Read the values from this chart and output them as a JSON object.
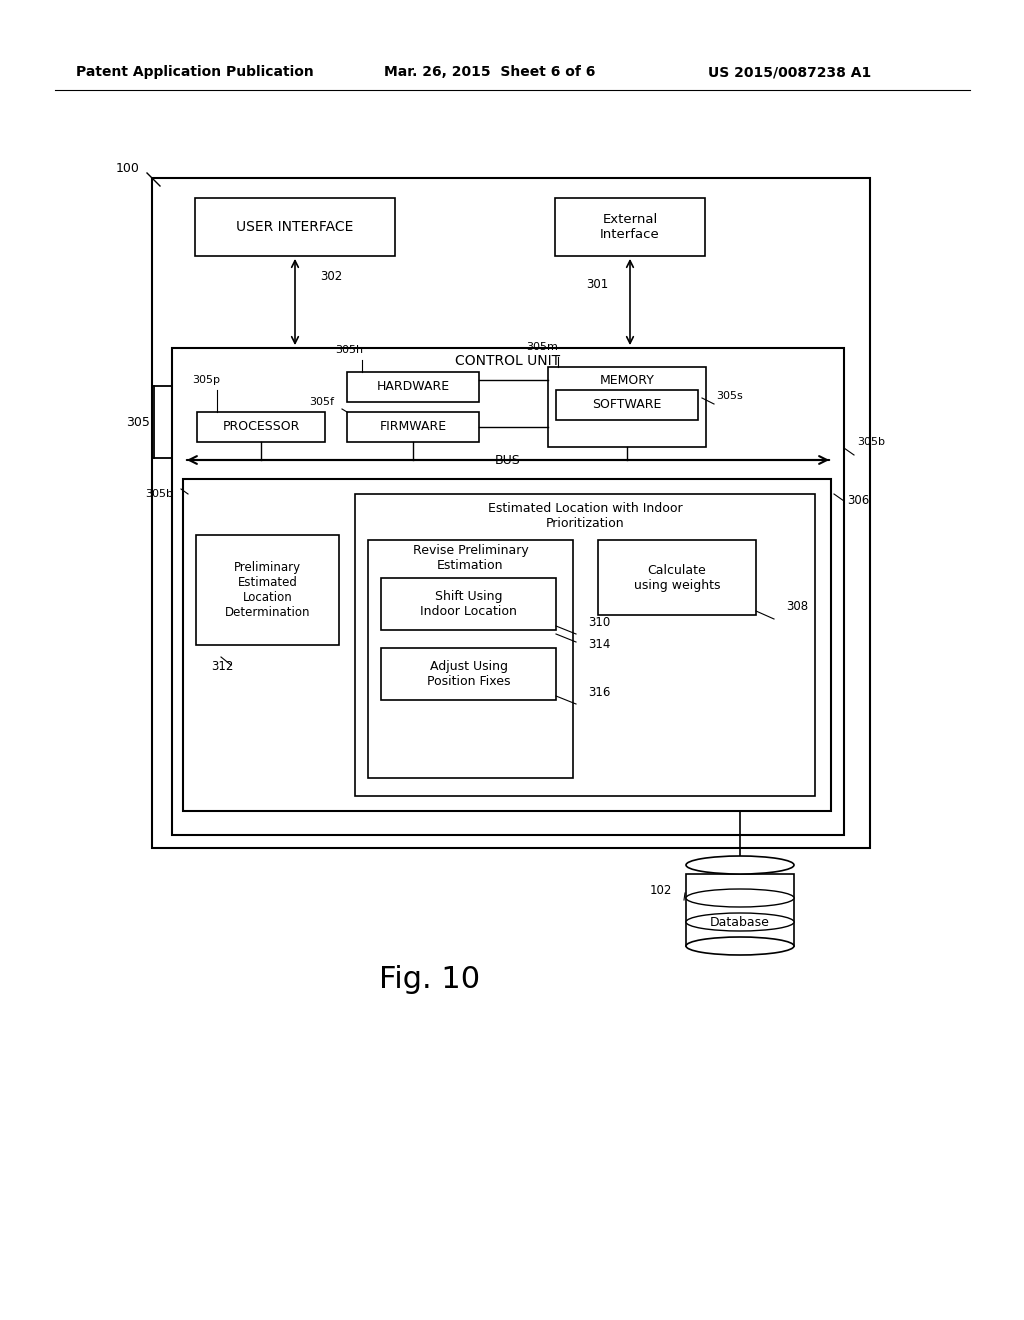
{
  "bg_color": "#ffffff",
  "header_left": "Patent Application Publication",
  "header_mid": "Mar. 26, 2015  Sheet 6 of 6",
  "header_right": "US 2015/0087238 A1",
  "fig_label": "Fig. 10",
  "outer_box_label": "100",
  "control_unit_label": "CONTROL UNIT",
  "bus_label": "BUS",
  "label_305": "305",
  "label_305b_bus": "305b",
  "label_305b_left": "305b",
  "label_305p": "305p",
  "label_305h": "305h",
  "label_305m": "305m",
  "label_305f": "305f",
  "label_305s": "305s",
  "label_306": "306",
  "label_301": "301",
  "label_302": "302",
  "label_312": "312",
  "label_310": "310",
  "label_308": "308",
  "label_314": "314",
  "label_316": "316",
  "label_102": "102",
  "boxes": {
    "user_interface": {
      "text": "USER INTERFACE"
    },
    "external_interface": {
      "text": "External\nInterface"
    },
    "hardware": {
      "text": "HARDWARE"
    },
    "software": {
      "text": "SOFTWARE"
    },
    "memory": {
      "text": "MEMORY"
    },
    "processor": {
      "text": "PROCESSOR"
    },
    "firmware": {
      "text": "FIRMWARE"
    },
    "preliminary": {
      "text": "Preliminary\nEstimated\nLocation\nDetermination"
    },
    "estimated_location": {
      "text": "Estimated Location with Indoor\nPrioritization"
    },
    "revise": {
      "text": "Revise Preliminary\nEstimation"
    },
    "calculate": {
      "text": "Calculate\nusing weights"
    },
    "shift": {
      "text": "Shift Using\nIndoor Location"
    },
    "adjust": {
      "text": "Adjust Using\nPosition Fixes"
    },
    "database": {
      "text": "Database"
    }
  }
}
